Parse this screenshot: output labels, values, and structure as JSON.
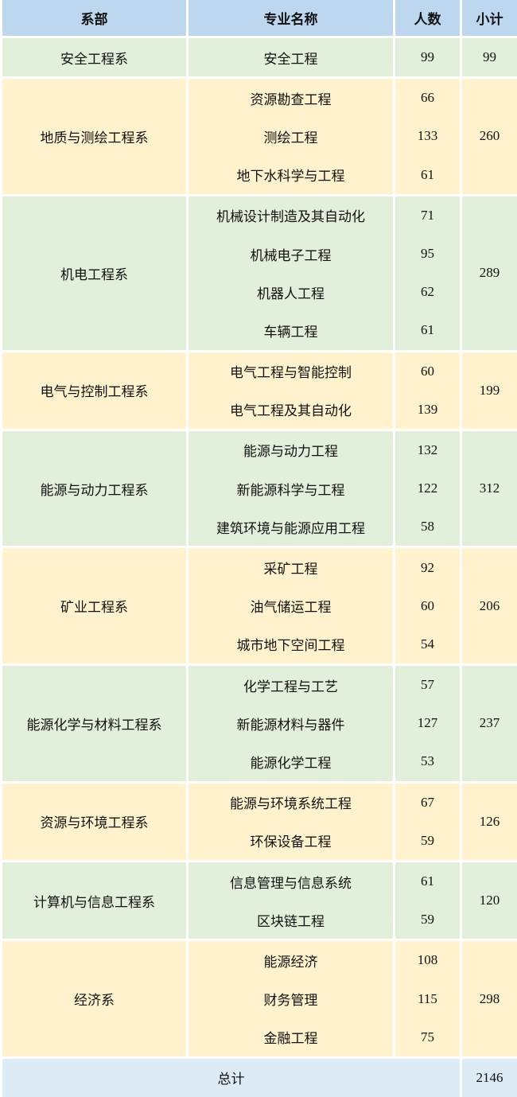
{
  "headers": {
    "dept": "系部",
    "major": "专业名称",
    "count": "人数",
    "subtotal": "小计"
  },
  "colors": {
    "header": "#bdd7ee",
    "green": "#e2efda",
    "yellow": "#fff2cc",
    "total": "#ddebf7"
  },
  "groups": [
    {
      "dept": "安全工程系",
      "subtotal": "99",
      "majors": [
        {
          "name": "安全工程",
          "count": "99"
        }
      ]
    },
    {
      "dept": "地质与测绘工程系",
      "subtotal": "260",
      "majors": [
        {
          "name": "资源勘查工程",
          "count": "66"
        },
        {
          "name": "测绘工程",
          "count": "133"
        },
        {
          "name": "地下水科学与工程",
          "count": "61"
        }
      ]
    },
    {
      "dept": "机电工程系",
      "subtotal": "289",
      "majors": [
        {
          "name": "机械设计制造及其自动化",
          "count": "71"
        },
        {
          "name": "机械电子工程",
          "count": "95"
        },
        {
          "name": "机器人工程",
          "count": "62"
        },
        {
          "name": "车辆工程",
          "count": "61"
        }
      ]
    },
    {
      "dept": "电气与控制工程系",
      "subtotal": "199",
      "majors": [
        {
          "name": "电气工程与智能控制",
          "count": "60"
        },
        {
          "name": "电气工程及其自动化",
          "count": "139"
        }
      ]
    },
    {
      "dept": "能源与动力工程系",
      "subtotal": "312",
      "majors": [
        {
          "name": "能源与动力工程",
          "count": "132"
        },
        {
          "name": "新能源科学与工程",
          "count": "122"
        },
        {
          "name": "建筑环境与能源应用工程",
          "count": "58"
        }
      ]
    },
    {
      "dept": "矿业工程系",
      "subtotal": "206",
      "majors": [
        {
          "name": "采矿工程",
          "count": "92"
        },
        {
          "name": "油气储运工程",
          "count": "60"
        },
        {
          "name": "城市地下空间工程",
          "count": "54"
        }
      ]
    },
    {
      "dept": "能源化学与材料工程系",
      "subtotal": "237",
      "majors": [
        {
          "name": "化学工程与工艺",
          "count": "57"
        },
        {
          "name": "新能源材料与器件",
          "count": "127"
        },
        {
          "name": "能源化学工程",
          "count": "53"
        }
      ]
    },
    {
      "dept": "资源与环境工程系",
      "subtotal": "126",
      "majors": [
        {
          "name": "能源与环境系统工程",
          "count": "67"
        },
        {
          "name": "环保设备工程",
          "count": "59"
        }
      ]
    },
    {
      "dept": "计算机与信息工程系",
      "subtotal": "120",
      "majors": [
        {
          "name": "信息管理与信息系统",
          "count": "61"
        },
        {
          "name": "区块链工程",
          "count": "59"
        }
      ]
    },
    {
      "dept": "经济系",
      "subtotal": "298",
      "majors": [
        {
          "name": "能源经济",
          "count": "108"
        },
        {
          "name": "财务管理",
          "count": "115"
        },
        {
          "name": "金融工程",
          "count": "75"
        }
      ]
    }
  ],
  "total": {
    "label": "总计",
    "value": "2146"
  }
}
